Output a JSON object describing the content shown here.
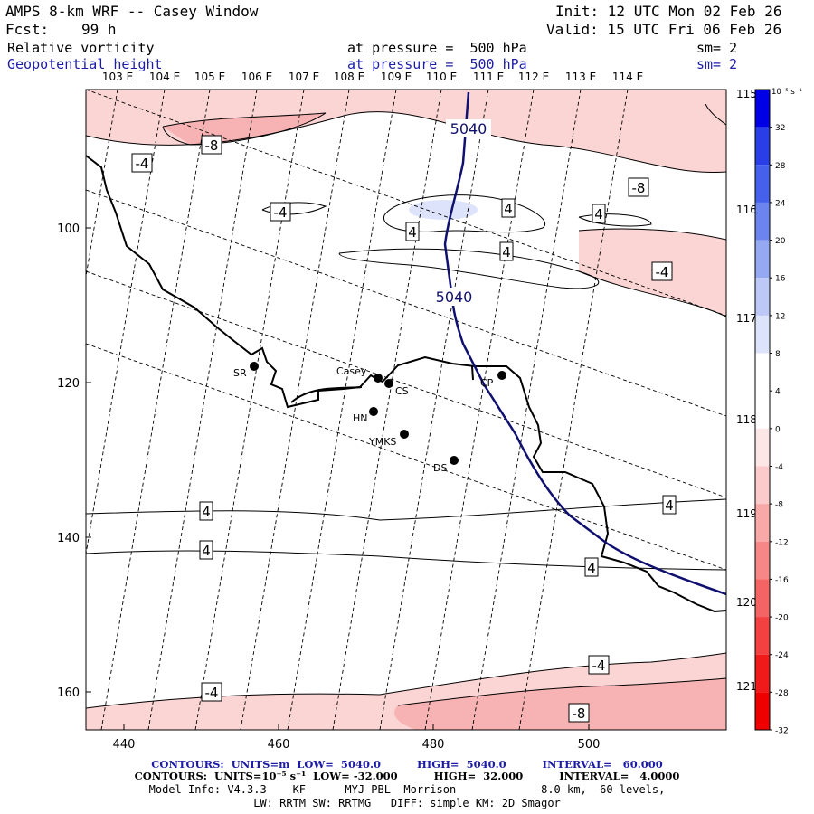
{
  "header": {
    "title": "AMPS 8-km WRF -- Casey Window",
    "init": "Init: 12 UTC Mon 02 Feb 26",
    "fcst_label": "Fcst:",
    "fcst_value": "99 h",
    "valid": "Valid: 15 UTC Fri 06 Feb 26",
    "field1": "Relative vorticity",
    "field1_level": "at pressure =  500 hPa",
    "field1_sm": "sm= 2",
    "field2": "Geopotential height",
    "field2_level": "at pressure =  500 hPa",
    "field2_sm": "sm= 2"
  },
  "map": {
    "lon_labels": [
      "103 E",
      "104 E",
      "105 E",
      "106 E",
      "107 E",
      "108 E",
      "109 E",
      "110 E",
      "111 E",
      "112 E",
      "113 E",
      "114 E"
    ],
    "right_labels": [
      "115 E",
      "116 E",
      "117 E",
      "118 E",
      "119 E",
      "120 E",
      "121 E"
    ],
    "y_ticks": [
      "100",
      "120",
      "140",
      "160"
    ],
    "x_ticks": [
      "440",
      "460",
      "480",
      "500"
    ],
    "height_label_1": "5040",
    "height_label_2": "5040",
    "contour_labels": [
      "-8",
      "-4",
      "-4",
      "4",
      "4",
      "4",
      "-8",
      "4",
      "-4",
      "4",
      "4",
      "4",
      "4",
      "-4",
      "-4",
      "-8"
    ],
    "stations": [
      {
        "name": "SR"
      },
      {
        "name": "Casey"
      },
      {
        "name": "CS"
      },
      {
        "name": "HN"
      },
      {
        "name": "YMKS"
      },
      {
        "name": "DS"
      },
      {
        "name": "CP"
      }
    ],
    "colors": {
      "height": "#101070",
      "contour": "#000000",
      "coast": "#000000"
    }
  },
  "colorbar": {
    "unit": "10⁻⁵ s⁻¹",
    "ticks": [
      "32",
      "28",
      "24",
      "20",
      "16",
      "12",
      "8",
      "4",
      "0",
      "-4",
      "-8",
      "-12",
      "-16",
      "-20",
      "-24",
      "-28",
      "-32"
    ],
    "colors": [
      "#0000e6",
      "#2a3ee8",
      "#4560ea",
      "#6c84ee",
      "#95a8f2",
      "#bdc8f6",
      "#dde3fa",
      "#ffffff",
      "#ffffff",
      "#fde6e6",
      "#fbcaca",
      "#f9a8a8",
      "#f78686",
      "#f56464",
      "#f34040",
      "#f11a1a",
      "#ee0000"
    ]
  },
  "footer": {
    "line1_a": "CONTOURS:  UNITS=m  LOW=  5040.0",
    "line1_b": "HIGH=  5040.0",
    "line1_c": "INTERVAL=   60.000",
    "line2_a": "CONTOURS:  UNITS=10⁻⁵ s⁻¹  LOW= -32.000",
    "line2_b": "HIGH=  32.000",
    "line2_c": "INTERVAL=   4.0000",
    "line3": "Model Info: V4.3.3    KF      MYJ PBL  Morrison             8.0 km,  60 levels,",
    "line4": "LW: RRTM SW: RRTMG   DIFF: simple KM: 2D Smagor"
  }
}
